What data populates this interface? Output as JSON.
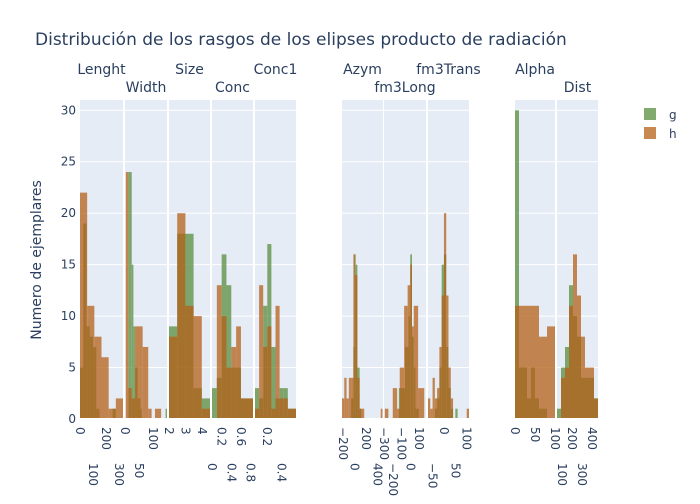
{
  "chart_data": {
    "type": "histogram",
    "title": "Distribución de los rasgos de los elipses producto de radiación",
    "ylabel": "Numero de ejemplares",
    "ylim": [
      0,
      31
    ],
    "yticks": [
      0,
      5,
      10,
      15,
      20,
      25,
      30
    ],
    "barmode": "overlay",
    "legend": {
      "position": "top-right",
      "entries": [
        {
          "name": "g",
          "color": "#588D3E"
        },
        {
          "name": "h",
          "color": "#B46017"
        }
      ]
    },
    "grid": true,
    "subplots": [
      {
        "name": "Lenght",
        "xlim": [
          0,
          330
        ],
        "xticks": [
          "0",
          "100",
          "200",
          "300"
        ],
        "xtickvals": [
          0,
          100,
          200,
          300
        ],
        "g": [
          [
            0,
            25,
            5
          ],
          [
            25,
            50,
            19
          ],
          [
            50,
            75,
            9
          ],
          [
            75,
            100,
            8
          ],
          [
            100,
            125,
            7
          ],
          [
            125,
            150,
            1
          ],
          [
            250,
            275,
            1
          ]
        ],
        "h": [
          [
            0,
            55,
            22
          ],
          [
            55,
            110,
            11
          ],
          [
            110,
            165,
            8
          ],
          [
            165,
            220,
            6
          ],
          [
            220,
            275,
            1
          ],
          [
            275,
            330,
            2
          ]
        ]
      },
      {
        "name": "Width",
        "xlim": [
          0,
          150
        ],
        "xticks": [
          "0",
          "50",
          "100"
        ],
        "xtickvals": [
          0,
          50,
          100
        ],
        "g": [
          [
            12,
            24,
            24
          ],
          [
            24,
            30,
            15
          ],
          [
            30,
            36,
            9
          ],
          [
            36,
            45,
            5
          ],
          [
            45,
            55,
            2
          ],
          [
            55,
            60,
            1
          ],
          [
            145,
            150,
            1
          ]
        ],
        "h": [
          [
            3,
            12,
            24
          ],
          [
            12,
            24,
            3
          ],
          [
            24,
            36,
            2
          ],
          [
            36,
            63,
            9
          ],
          [
            63,
            83,
            7
          ],
          [
            83,
            95,
            1
          ],
          [
            107,
            129,
            1
          ]
        ]
      },
      {
        "name": "Size",
        "xlim": [
          2,
          4.5
        ],
        "xticks": [
          "2",
          "3",
          "4"
        ],
        "xtickvals": [
          2,
          3,
          4
        ],
        "g": [
          [
            2,
            2.5,
            9
          ],
          [
            2.5,
            3,
            18
          ],
          [
            3,
            3.5,
            18
          ],
          [
            3.5,
            4,
            3
          ],
          [
            4,
            4.5,
            2
          ]
        ],
        "h": [
          [
            2,
            2.5,
            8
          ],
          [
            2.5,
            3,
            20
          ],
          [
            3,
            3.5,
            11
          ],
          [
            3.5,
            4,
            10
          ],
          [
            4,
            4.5,
            1
          ]
        ]
      },
      {
        "name": "Conc",
        "xlim": [
          0,
          0.85
        ],
        "xticks": [
          "0",
          "0.2",
          "0.4",
          "0.6",
          "0.8"
        ],
        "xtickvals": [
          0,
          0.2,
          0.4,
          0.6,
          0.8
        ],
        "g": [
          [
            0,
            0.1,
            3
          ],
          [
            0.1,
            0.2,
            4
          ],
          [
            0.2,
            0.3,
            16
          ],
          [
            0.3,
            0.4,
            13
          ],
          [
            0.4,
            0.5,
            5
          ],
          [
            0.5,
            0.6,
            5
          ],
          [
            0.6,
            0.85,
            2
          ]
        ],
        "h": [
          [
            0.1,
            0.2,
            13
          ],
          [
            0.2,
            0.3,
            10
          ],
          [
            0.3,
            0.4,
            5
          ],
          [
            0.4,
            0.5,
            7
          ],
          [
            0.5,
            0.6,
            9
          ],
          [
            0.6,
            0.85,
            2
          ]
        ]
      },
      {
        "name": "Conc1",
        "xlim": [
          0.03,
          0.6
        ],
        "xticks": [
          "0.2",
          "0.4"
        ],
        "xtickvals": [
          0.2,
          0.4
        ],
        "g": [
          [
            0.03,
            0.087,
            3
          ],
          [
            0.087,
            0.144,
            2
          ],
          [
            0.144,
            0.201,
            11
          ],
          [
            0.201,
            0.258,
            17
          ],
          [
            0.258,
            0.315,
            7
          ],
          [
            0.315,
            0.372,
            2
          ],
          [
            0.372,
            0.429,
            3
          ],
          [
            0.429,
            0.486,
            3
          ],
          [
            0.486,
            0.6,
            1
          ]
        ],
        "h": [
          [
            0.03,
            0.087,
            1
          ],
          [
            0.087,
            0.144,
            13
          ],
          [
            0.144,
            0.201,
            7
          ],
          [
            0.201,
            0.258,
            9
          ],
          [
            0.258,
            0.315,
            1
          ],
          [
            0.315,
            0.372,
            11
          ],
          [
            0.372,
            0.429,
            2
          ],
          [
            0.429,
            0.486,
            2
          ],
          [
            0.486,
            0.6,
            1
          ]
        ]
      },
      {
        "name": "Azym",
        "xlim": [
          -220,
          500
        ],
        "xticks": [
          "−200",
          "0",
          "200",
          "400"
        ],
        "xtickvals": [
          -200,
          0,
          200,
          400
        ],
        "g": [
          [
            -60,
            -20,
            2
          ],
          [
            -20,
            0,
            7
          ],
          [
            0,
            20,
            16
          ],
          [
            20,
            50,
            15
          ],
          [
            50,
            90,
            5
          ],
          [
            90,
            120,
            1
          ]
        ],
        "h": [
          [
            -220,
            -180,
            2
          ],
          [
            -180,
            -140,
            4
          ],
          [
            -140,
            -100,
            2
          ],
          [
            -100,
            -60,
            4
          ],
          [
            -60,
            -20,
            4
          ],
          [
            -20,
            10,
            16
          ],
          [
            10,
            50,
            14
          ],
          [
            50,
            90,
            4
          ],
          [
            90,
            130,
            1
          ],
          [
            130,
            170,
            1
          ],
          [
            250,
            290,
            0
          ],
          [
            460,
            490,
            1
          ]
        ]
      },
      {
        "name": "fm3Long",
        "xlim": [
          -300,
          180
        ],
        "xticks": [
          "−300",
          "−200",
          "−100",
          "0",
          "100"
        ],
        "xtickvals": [
          -300,
          -200,
          -100,
          0,
          100
        ],
        "g": [
          [
            -130,
            -60,
            3
          ],
          [
            -60,
            -20,
            7
          ],
          [
            -20,
            0,
            10
          ],
          [
            0,
            20,
            16
          ],
          [
            20,
            40,
            8
          ],
          [
            40,
            60,
            5
          ],
          [
            60,
            100,
            1
          ]
        ],
        "h": [
          [
            -290,
            -250,
            1
          ],
          [
            -200,
            -150,
            3
          ],
          [
            -150,
            -120,
            1
          ],
          [
            -120,
            -70,
            5
          ],
          [
            -70,
            -30,
            11
          ],
          [
            -30,
            0,
            13
          ],
          [
            0,
            20,
            15
          ],
          [
            20,
            40,
            9
          ],
          [
            40,
            90,
            11
          ],
          [
            90,
            160,
            3
          ]
        ]
      },
      {
        "name": "fm3Trans",
        "xlim": [
          -70,
          110
        ],
        "xticks": [
          "−50",
          "0",
          "50",
          "100"
        ],
        "xtickvals": [
          -50,
          0,
          50,
          100
        ],
        "g": [
          [
            -40,
            -30,
            1
          ],
          [
            -30,
            -20,
            2
          ],
          [
            -20,
            -10,
            5
          ],
          [
            -10,
            0,
            15
          ],
          [
            0,
            10,
            16
          ],
          [
            10,
            20,
            7
          ],
          [
            20,
            30,
            3
          ],
          [
            30,
            40,
            1
          ],
          [
            50,
            60,
            1
          ]
        ],
        "h": [
          [
            -70,
            -60,
            2
          ],
          [
            -60,
            -50,
            1
          ],
          [
            -50,
            -40,
            4
          ],
          [
            -40,
            -30,
            2
          ],
          [
            -30,
            -20,
            3
          ],
          [
            -20,
            -10,
            7
          ],
          [
            -10,
            0,
            12
          ],
          [
            0,
            10,
            20
          ],
          [
            10,
            20,
            12
          ],
          [
            20,
            30,
            5
          ],
          [
            30,
            40,
            2
          ],
          [
            100,
            110,
            1
          ]
        ]
      },
      {
        "name": "Alpha",
        "xlim": [
          0,
          100
        ],
        "xticks": [
          "0",
          "50",
          "100"
        ],
        "xtickvals": [
          0,
          50,
          100
        ],
        "g": [
          [
            0,
            10,
            30
          ],
          [
            10,
            20,
            5
          ],
          [
            20,
            30,
            5
          ],
          [
            30,
            40,
            2
          ],
          [
            40,
            50,
            5
          ],
          [
            50,
            60,
            2
          ],
          [
            60,
            70,
            1
          ],
          [
            70,
            80,
            1
          ]
        ],
        "h": [
          [
            0,
            20,
            11
          ],
          [
            20,
            40,
            11
          ],
          [
            40,
            60,
            11
          ],
          [
            60,
            80,
            8
          ],
          [
            80,
            100,
            9
          ]
        ]
      },
      {
        "name": "Dist",
        "xlim": [
          50,
          460
        ],
        "xticks": [
          "100",
          "200",
          "300",
          "400"
        ],
        "xtickvals": [
          100,
          200,
          300,
          400
        ],
        "g": [
          [
            50,
            90,
            1
          ],
          [
            90,
            130,
            5
          ],
          [
            130,
            170,
            7
          ],
          [
            170,
            210,
            13
          ],
          [
            210,
            250,
            10
          ],
          [
            250,
            290,
            8
          ],
          [
            290,
            330,
            4
          ],
          [
            330,
            370,
            4
          ],
          [
            370,
            420,
            4
          ],
          [
            420,
            460,
            2
          ]
        ],
        "h": [
          [
            90,
            130,
            4
          ],
          [
            130,
            170,
            5
          ],
          [
            170,
            210,
            11
          ],
          [
            210,
            250,
            16
          ],
          [
            250,
            290,
            12
          ],
          [
            290,
            330,
            8
          ],
          [
            330,
            370,
            5
          ],
          [
            370,
            420,
            5
          ],
          [
            420,
            460,
            2
          ]
        ]
      }
    ]
  }
}
